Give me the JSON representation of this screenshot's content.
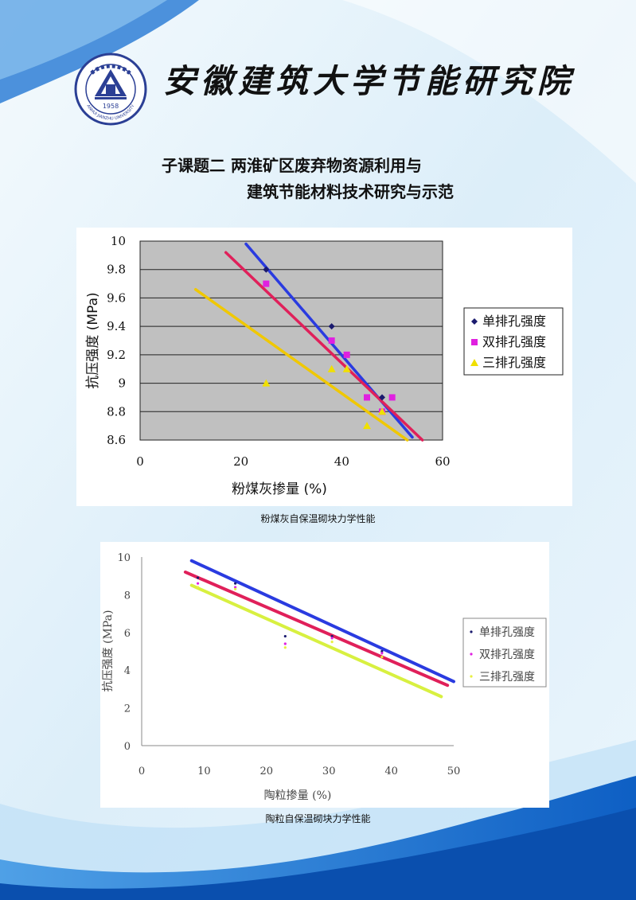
{
  "header": {
    "institute_title": "安徽建筑大学节能研究院",
    "logo": {
      "name": "university-seal",
      "ring_text": "ANHUI JIANZHU UNIVERSITY",
      "year": "1958"
    }
  },
  "subtitle": {
    "line1": "子课题二  两淮矿区废弃物资源利用与",
    "line2": "建筑节能材料技术研究与示范"
  },
  "captions": {
    "chart1": "粉煤灰自保温砌块力学性能",
    "chart2": "陶粒自保温砌块力学性能"
  },
  "colors": {
    "blue_line": "#2a3be0",
    "red_line": "#e0205a",
    "yellow_line": "#f0c800",
    "green_yellow_line": "#d8f040",
    "page_wave": "#1e6fd0",
    "plot_gray": "#c0c0c0"
  },
  "chart_data": [
    {
      "type": "scatter",
      "title": "",
      "xlabel": "粉煤灰掺量 (%)",
      "ylabel": "抗压强度 (MPa)",
      "xlim": [
        0,
        60
      ],
      "ylim": [
        8.6,
        10
      ],
      "x_ticks": [
        "0",
        "20",
        "40",
        "60"
      ],
      "y_ticks": [
        "8.6",
        "8.8",
        "9",
        "9.2",
        "9.4",
        "9.6",
        "9.8",
        "10"
      ],
      "grid": "horizontal",
      "legend_position": "right",
      "series": [
        {
          "name": "单排孔强度",
          "marker": "diamond",
          "color": "#1a1a6e",
          "points": [
            [
              25,
              9.8
            ],
            [
              38,
              9.4
            ],
            [
              45,
              8.9
            ],
            [
              48,
              8.9
            ]
          ],
          "trendline": {
            "x": [
              21,
              54
            ],
            "y": [
              9.98,
              8.62
            ]
          },
          "trend_color": "#2a3be0"
        },
        {
          "name": "双排孔强度",
          "marker": "square",
          "color": "#e020e0",
          "points": [
            [
              25,
              9.7
            ],
            [
              38,
              9.3
            ],
            [
              41,
              9.2
            ],
            [
              45,
              8.9
            ],
            [
              48,
              8.8
            ],
            [
              50,
              8.9
            ]
          ],
          "trendline": {
            "x": [
              17,
              56
            ],
            "y": [
              9.92,
              8.6
            ]
          },
          "trend_color": "#e0205a"
        },
        {
          "name": "三排孔强度",
          "marker": "triangle",
          "color": "#f0e000",
          "points": [
            [
              25,
              9.0
            ],
            [
              38,
              9.1
            ],
            [
              41,
              9.1
            ],
            [
              45,
              8.7
            ],
            [
              48,
              8.8
            ]
          ],
          "trendline": {
            "x": [
              11,
              53
            ],
            "y": [
              9.66,
              8.6
            ]
          },
          "trend_color": "#f0c800"
        }
      ]
    },
    {
      "type": "scatter",
      "title": "",
      "xlabel": "陶粒掺量 (%)",
      "ylabel": "抗压强度 (MPa)",
      "xlim": [
        0,
        50
      ],
      "ylim": [
        0,
        10
      ],
      "x_ticks": [
        "0",
        "10",
        "20",
        "30",
        "40",
        "50"
      ],
      "y_ticks": [
        "0",
        "2",
        "4",
        "6",
        "8",
        "10"
      ],
      "grid": "none",
      "legend_position": "right",
      "series": [
        {
          "name": "单排孔强度",
          "marker": "dot",
          "color": "#1a1a6e",
          "points": [
            [
              9,
              8.9
            ],
            [
              15,
              8.6
            ],
            [
              23,
              5.8
            ],
            [
              30.5,
              5.8
            ],
            [
              38.5,
              5.0
            ]
          ],
          "trendline": {
            "x": [
              8,
              50
            ],
            "y": [
              9.8,
              3.4
            ]
          },
          "trend_color": "#2a3be0"
        },
        {
          "name": "双排孔强度",
          "marker": "dot",
          "color": "#e020e0",
          "points": [
            [
              9,
              8.6
            ],
            [
              15,
              8.4
            ],
            [
              23,
              5.4
            ],
            [
              30.5,
              5.7
            ],
            [
              38.5,
              4.9
            ]
          ],
          "trendline": {
            "x": [
              7,
              49
            ],
            "y": [
              9.2,
              3.2
            ]
          },
          "trend_color": "#e0205a"
        },
        {
          "name": "三排孔强度",
          "marker": "dot",
          "color": "#e8f040",
          "points": [
            [
              9,
              8.4
            ],
            [
              15,
              8.3
            ],
            [
              23,
              5.2
            ],
            [
              30.5,
              5.5
            ],
            [
              38.5,
              4.7
            ]
          ],
          "trendline": {
            "x": [
              8,
              48
            ],
            "y": [
              8.5,
              2.6
            ]
          },
          "trend_color": "#d8f040"
        }
      ]
    }
  ]
}
